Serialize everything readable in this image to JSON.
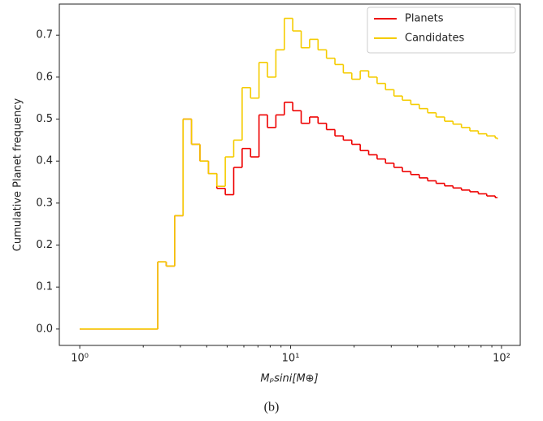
{
  "chart_data": {
    "type": "step",
    "xlabel": "Mₚsini[M⊕]",
    "ylabel": "Cumulative Planet frequency",
    "caption": "(b)",
    "xscale": "log",
    "xlim": [
      0.8,
      122.7
    ],
    "xticks": [
      {
        "value": 1,
        "label": "10⁰"
      },
      {
        "value": 10,
        "label": "10¹"
      },
      {
        "value": 100,
        "label": "10²"
      }
    ],
    "xminorticks": [
      2,
      3,
      4,
      5,
      6,
      7,
      8,
      9,
      20,
      30,
      40,
      50,
      60,
      70,
      80,
      90
    ],
    "ylim": [
      -0.039,
      0.774
    ],
    "yticks": [
      {
        "value": 0,
        "label": "0.0"
      },
      0.1,
      0.2,
      0.3,
      0.4,
      0.5,
      0.6,
      0.7
    ],
    "legend": "upper right",
    "x": [
      1.0,
      2.344,
      2.57,
      2.818,
      3.09,
      3.388,
      3.715,
      4.074,
      4.467,
      4.898,
      5.37,
      5.888,
      6.457,
      7.079,
      7.762,
      8.511,
      9.333,
      10.23,
      11.22,
      12.3,
      13.49,
      14.79,
      16.22,
      17.78,
      19.5,
      21.38,
      23.44,
      25.7,
      28.18,
      30.9,
      33.88,
      37.15,
      40.74,
      44.67,
      48.98,
      53.7,
      58.88,
      64.57,
      70.79,
      77.62,
      85.11,
      93.33,
      95.5
    ],
    "series": [
      {
        "name": "Planets",
        "color": "#ee0000",
        "values": [
          0,
          0.16,
          0.15,
          0.27,
          0.5,
          0.44,
          0.4,
          0.37,
          0.335,
          0.32,
          0.385,
          0.43,
          0.41,
          0.51,
          0.48,
          0.51,
          0.54,
          0.52,
          0.49,
          0.505,
          0.49,
          0.475,
          0.46,
          0.45,
          0.44,
          0.425,
          0.415,
          0.405,
          0.395,
          0.385,
          0.375,
          0.368,
          0.36,
          0.353,
          0.347,
          0.341,
          0.336,
          0.331,
          0.327,
          0.322,
          0.317,
          0.313,
          0.312
        ]
      },
      {
        "name": "Candidates",
        "color": "#f5cc00",
        "values": [
          0,
          0.16,
          0.15,
          0.27,
          0.5,
          0.44,
          0.4,
          0.37,
          0.34,
          0.41,
          0.45,
          0.575,
          0.55,
          0.635,
          0.6,
          0.665,
          0.74,
          0.71,
          0.67,
          0.69,
          0.665,
          0.645,
          0.63,
          0.61,
          0.595,
          0.615,
          0.6,
          0.585,
          0.57,
          0.555,
          0.545,
          0.535,
          0.525,
          0.515,
          0.505,
          0.495,
          0.488,
          0.48,
          0.472,
          0.465,
          0.46,
          0.455,
          0.452
        ]
      }
    ]
  }
}
